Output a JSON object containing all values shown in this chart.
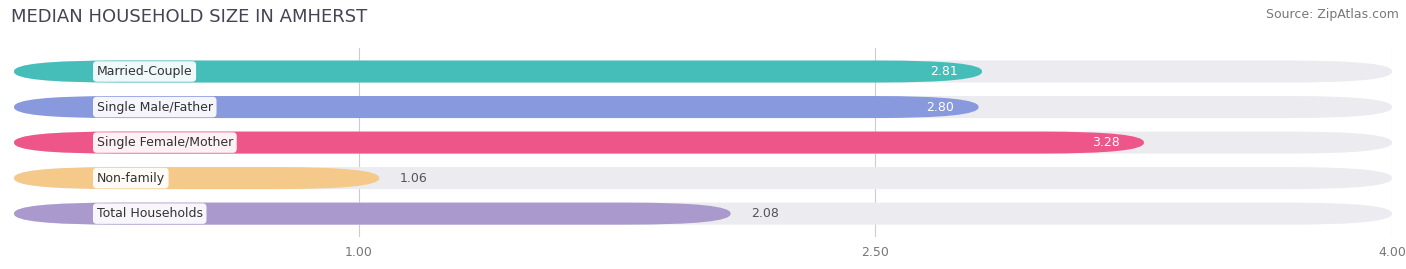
{
  "title": "MEDIAN HOUSEHOLD SIZE IN AMHERST",
  "source": "Source: ZipAtlas.com",
  "categories": [
    "Married-Couple",
    "Single Male/Father",
    "Single Female/Mother",
    "Non-family",
    "Total Households"
  ],
  "values": [
    2.81,
    2.8,
    3.28,
    1.06,
    2.08
  ],
  "bar_colors": [
    "#45bdb8",
    "#8899dd",
    "#ee5588",
    "#f5c98a",
    "#aa99cc"
  ],
  "value_colors": [
    "white",
    "white",
    "white",
    "black",
    "black"
  ],
  "value_inside": [
    true,
    true,
    true,
    false,
    false
  ],
  "background_color": "#ffffff",
  "bar_background_color": "#ebebf0",
  "xlim": [
    0,
    4.0
  ],
  "xticks": [
    1.0,
    2.5,
    4.0
  ],
  "title_fontsize": 13,
  "source_fontsize": 9,
  "label_fontsize": 9,
  "value_fontsize": 9
}
